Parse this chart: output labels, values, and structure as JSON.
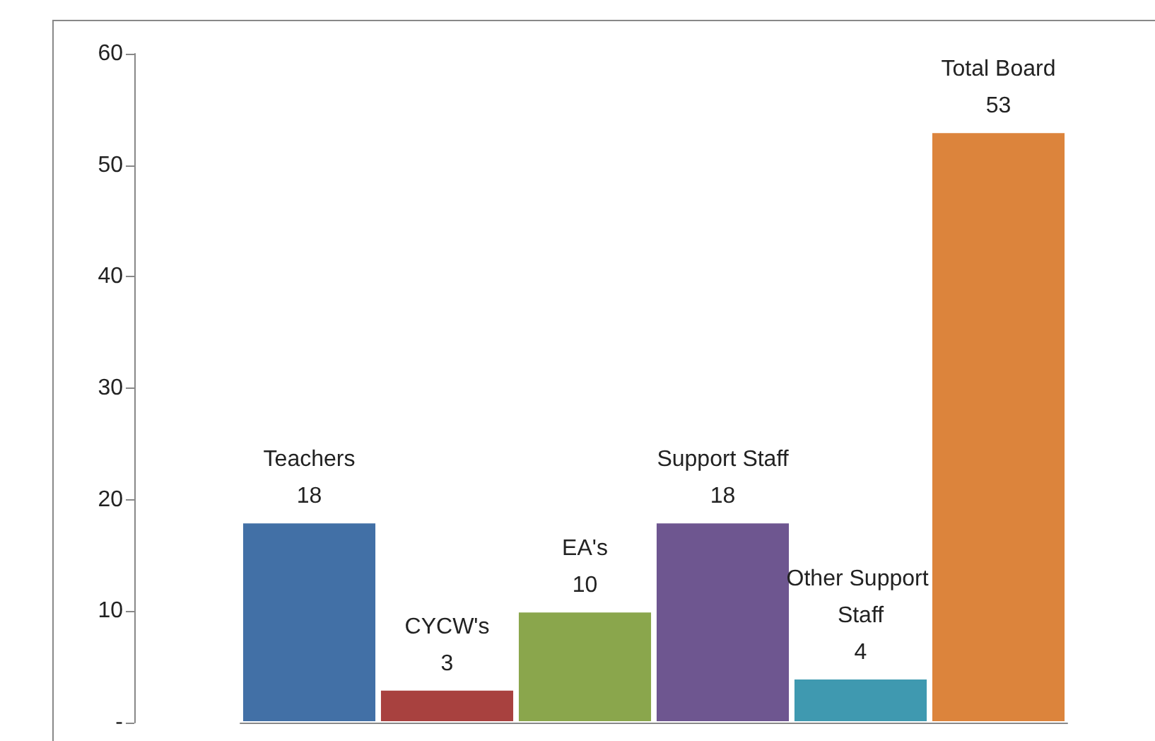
{
  "chart_data": {
    "type": "bar",
    "categories": [
      "Teachers",
      "CYCW's",
      "EA's",
      "Support Staff",
      "Other Support Staff",
      "Total Board"
    ],
    "values": [
      18,
      3,
      10,
      18,
      4,
      53
    ],
    "colors": [
      "#4270a6",
      "#a8413f",
      "#8aa64c",
      "#6e5690",
      "#3f99b0",
      "#dc843c"
    ],
    "ylim": [
      0,
      60
    ],
    "yticks": [
      {
        "value": 0,
        "label": "-"
      },
      10,
      20,
      30,
      40,
      50,
      60
    ],
    "data_labels": true,
    "tick_labels": "y"
  }
}
